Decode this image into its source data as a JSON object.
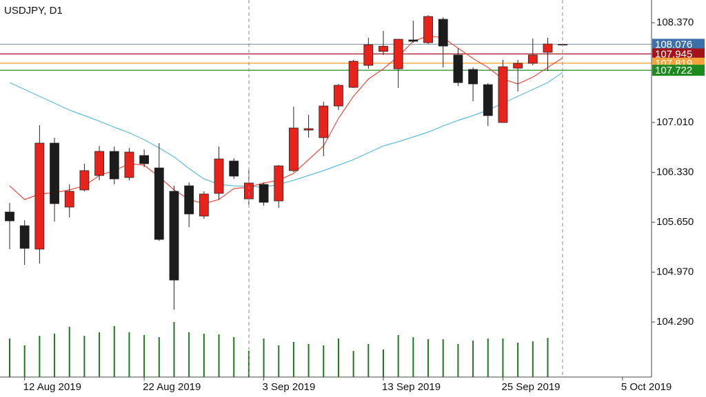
{
  "chart_data": {
    "type": "candlestick",
    "title": "USDJPY, D1",
    "categories": [
      null,
      "12 Aug 2019",
      null,
      null,
      null,
      null,
      null,
      null,
      null,
      "22 Aug 2019",
      null,
      null,
      null,
      null,
      null,
      null,
      null,
      "3 Sep 2019",
      null,
      null,
      null,
      null,
      null,
      null,
      null,
      "13 Sep 2019",
      null,
      null,
      null,
      null,
      null,
      null,
      null,
      "25 Sep 2019",
      null,
      null,
      null,
      null,
      null,
      null,
      null,
      "5 Oct 2019"
    ],
    "open": [
      105.79,
      105.603,
      105.284,
      106.729,
      105.857,
      106.091,
      106.288,
      106.616,
      106.26,
      106.56,
      106.391,
      106.072,
      106.147,
      105.735,
      106.044,
      106.485,
      105.969,
      106.166,
      105.941,
      106.354,
      106.907,
      106.804,
      107.235,
      107.489,
      107.789,
      107.98,
      107.742,
      108.136,
      108.098,
      108.417,
      107.93,
      107.733,
      107.526,
      107.01,
      107.751,
      107.817,
      107.967,
      108.076,
      null,
      null,
      null,
      null
    ],
    "high": [
      105.913,
      105.678,
      106.973,
      106.804,
      106.166,
      106.448,
      106.691,
      106.682,
      106.663,
      106.645,
      106.729,
      106.147,
      106.194,
      106.072,
      106.682,
      106.523,
      106.373,
      106.194,
      106.429,
      107.226,
      107.114,
      107.292,
      107.536,
      107.864,
      108.164,
      108.258,
      108.145,
      108.399,
      108.474,
      108.445,
      108.023,
      107.761,
      107.545,
      107.864,
      107.864,
      108.155,
      108.164,
      108.08,
      null,
      null,
      null,
      null
    ],
    "low": [
      105.284,
      105.069,
      105.087,
      105.66,
      105.716,
      106.072,
      106.222,
      106.166,
      106.222,
      106.401,
      105.397,
      104.459,
      105.585,
      105.697,
      105.96,
      106.241,
      105.885,
      105.875,
      105.847,
      106.335,
      106.804,
      106.551,
      107.179,
      107.48,
      107.742,
      107.93,
      107.48,
      108.098,
      108.08,
      107.761,
      107.507,
      107.301,
      106.963,
      107.01,
      107.432,
      107.789,
      107.714,
      108.07,
      null,
      null,
      null,
      null
    ],
    "close": [
      105.669,
      105.294,
      106.729,
      105.904,
      106.072,
      106.354,
      106.616,
      106.241,
      106.607,
      106.448,
      105.416,
      104.862,
      105.763,
      106.035,
      106.513,
      106.279,
      106.185,
      105.922,
      106.419,
      106.935,
      106.926,
      107.235,
      107.517,
      107.845,
      108.07,
      108.05,
      108.145,
      108.117,
      108.455,
      108.052,
      107.554,
      107.536,
      107.104,
      107.77,
      107.817,
      107.93,
      108.08,
      108.076,
      null,
      null,
      null,
      null
    ],
    "up_color": "#e8231b",
    "down_color": "#1c1c1c",
    "ylim": [
      103.54,
      108.68
    ],
    "yticks": [
      {
        "value": 108.37,
        "label": "108.370"
      },
      {
        "value": 107.01,
        "label": "107.010"
      },
      {
        "value": 106.33,
        "label": "106.330"
      },
      {
        "value": 105.65,
        "label": "105.650"
      },
      {
        "value": 104.97,
        "label": "104.970"
      },
      {
        "value": 104.29,
        "label": "104.290"
      }
    ],
    "moving_averages": [
      {
        "color": "#f04a3a",
        "values": [
          106.147,
          105.96,
          106.035,
          106.054,
          106.091,
          106.147,
          106.288,
          106.354,
          106.448,
          106.429,
          106.269,
          106.091,
          105.96,
          105.904,
          105.96,
          106.11,
          106.129,
          106.185,
          106.222,
          106.316,
          106.504,
          106.691,
          107.067,
          107.367,
          107.601,
          107.742,
          107.911,
          108.117,
          108.192,
          108.164,
          108.023,
          107.883,
          107.761,
          107.601,
          107.536,
          107.629,
          107.761,
          107.892,
          null,
          null,
          null,
          null
        ]
      },
      {
        "color": "#5bbcd8",
        "values": [
          107.554,
          107.461,
          107.367,
          107.273,
          107.179,
          107.104,
          107.029,
          106.945,
          106.87,
          106.776,
          106.663,
          106.541,
          106.382,
          106.241,
          106.166,
          106.147,
          106.138,
          106.129,
          106.166,
          106.222,
          106.288,
          106.354,
          106.429,
          106.504,
          106.598,
          106.691,
          106.748,
          106.813,
          106.879,
          106.963,
          107.039,
          107.104,
          107.179,
          107.273,
          107.367,
          107.461,
          107.554,
          107.695,
          null,
          null,
          null,
          null
        ]
      }
    ],
    "volume": {
      "color": "#1a7a1a",
      "ylim": [
        0,
        548
      ],
      "values": [
        56,
        46,
        60,
        63,
        73,
        60,
        65,
        74,
        65,
        61,
        58,
        80,
        65,
        63,
        62,
        58,
        38,
        56,
        46,
        51,
        48,
        46,
        56,
        38,
        48,
        40,
        61,
        58,
        55,
        55,
        48,
        53,
        56,
        56,
        50,
        52,
        57,
        null,
        null,
        null,
        null,
        null
      ]
    },
    "price_lines": [
      {
        "value": 108.076,
        "color": "#8da0b6",
        "label_color": "#3d6fa8"
      },
      {
        "value": 107.945,
        "color": "#a3141a",
        "label_color": "#a3141a"
      },
      {
        "value": 107.819,
        "color": "#f6a53a",
        "label_color": "#f6a53a"
      },
      {
        "value": 107.722,
        "color": "#1d8a1d",
        "label_color": "#1d8a1d"
      }
    ]
  }
}
